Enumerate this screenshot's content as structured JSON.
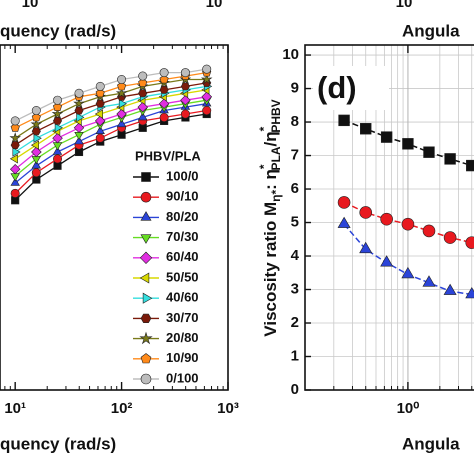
{
  "chart_data": [
    {
      "type": "line",
      "xlog": true,
      "xlim": [
        7.2,
        1000
      ],
      "ylim": [
        0,
        100
      ],
      "xticks": [
        {
          "value": 10,
          "label": "10¹"
        },
        {
          "value": 100,
          "label": "10²"
        },
        {
          "value": 1000,
          "label": "10³"
        }
      ],
      "xlabel": "quency (rad/s)",
      "top_xlabel": "quency (rad/s)",
      "top_tick_labels": [
        "10",
        "10"
      ],
      "legend_title": "PHBV/PLA",
      "legend": "lower right",
      "x": [
        10,
        15.8,
        25,
        39.8,
        63,
        100,
        158,
        251,
        398,
        631
      ],
      "series": [
        {
          "name": "100/0",
          "color": "#111111",
          "marker": "square",
          "values": [
            55,
            61,
            65,
            69,
            72,
            74,
            76,
            78,
            79,
            80
          ]
        },
        {
          "name": "90/10",
          "color": "#e8191f",
          "marker": "circle",
          "values": [
            57,
            63,
            67,
            71,
            73,
            76,
            78,
            79,
            80,
            81
          ]
        },
        {
          "name": "80/20",
          "color": "#2b44d8",
          "marker": "triangle-up",
          "values": [
            60,
            65,
            69,
            72,
            75,
            77,
            79,
            81,
            82,
            83
          ]
        },
        {
          "name": "70/30",
          "color": "#66dd22",
          "marker": "triangle-down",
          "values": [
            62,
            67,
            71,
            74,
            77,
            79,
            81,
            82,
            83,
            84
          ]
        },
        {
          "name": "60/40",
          "color": "#e02ee0",
          "marker": "diamond",
          "values": [
            64,
            69,
            73,
            76,
            78,
            80,
            82,
            83,
            84,
            85
          ]
        },
        {
          "name": "50/50",
          "color": "#d8d800",
          "marker": "triangle-left",
          "values": [
            67,
            71,
            75,
            78,
            80,
            82,
            84,
            85,
            86,
            87
          ]
        },
        {
          "name": "40/60",
          "color": "#33dede",
          "marker": "triangle-right",
          "values": [
            69,
            73,
            76,
            79,
            82,
            83,
            85,
            86,
            87,
            88
          ]
        },
        {
          "name": "30/70",
          "color": "#7b1a0a",
          "marker": "hexagon",
          "values": [
            71,
            75,
            78,
            81,
            83,
            85,
            86,
            87,
            88,
            89
          ]
        },
        {
          "name": "20/80",
          "color": "#7a7a1a",
          "marker": "star",
          "values": [
            73,
            77,
            80,
            83,
            85,
            86,
            88,
            89,
            90,
            90
          ]
        },
        {
          "name": "10/90",
          "color": "#ff8a1a",
          "marker": "pentagon",
          "values": [
            76,
            79,
            82,
            85,
            86,
            88,
            89,
            90,
            91,
            92
          ]
        },
        {
          "name": "0/100",
          "color": "#bdbdbd",
          "marker": "circle",
          "values": [
            78,
            81,
            84,
            86,
            88,
            90,
            91,
            92,
            92,
            93
          ]
        }
      ]
    },
    {
      "type": "line",
      "xlog": true,
      "xminor": true,
      "grid": true,
      "panel_label": "(d)",
      "xlim": [
        0.107,
        4.2
      ],
      "ylim": [
        0,
        10.3
      ],
      "xticks": [
        {
          "value": 1,
          "label": "10⁰"
        }
      ],
      "yticks": [
        0,
        1,
        2,
        3,
        4,
        5,
        6,
        7,
        8,
        9,
        10
      ],
      "xlabel": "Angula",
      "top_xlabel": "Angula",
      "top_tick_labels": [
        "10"
      ],
      "ylabel": [
        {
          "text": "Viscosity ratio M"
        },
        {
          "text": "η*",
          "shift": "sub"
        },
        {
          "text": ": η"
        },
        {
          "text": "*",
          "shift": "sup"
        },
        {
          "text": "PLA",
          "shift": "sub"
        },
        {
          "text": "/η"
        },
        {
          "text": "*",
          "shift": "sup"
        },
        {
          "text": "PHBV",
          "shift": "sub"
        }
      ],
      "x": [
        0.25,
        0.4,
        0.63,
        1.0,
        1.58,
        2.5,
        4.0
      ],
      "series": [
        {
          "color": "#111111",
          "marker": "square",
          "values": [
            8.05,
            7.8,
            7.55,
            7.35,
            7.1,
            6.9,
            6.7
          ]
        },
        {
          "color": "#e8191f",
          "marker": "circle",
          "values": [
            5.6,
            5.3,
            5.1,
            4.95,
            4.75,
            4.55,
            4.4
          ]
        },
        {
          "color": "#2b44d8",
          "marker": "triangle-up",
          "values": [
            4.95,
            4.2,
            3.8,
            3.45,
            3.2,
            2.95,
            2.85
          ]
        }
      ]
    }
  ]
}
